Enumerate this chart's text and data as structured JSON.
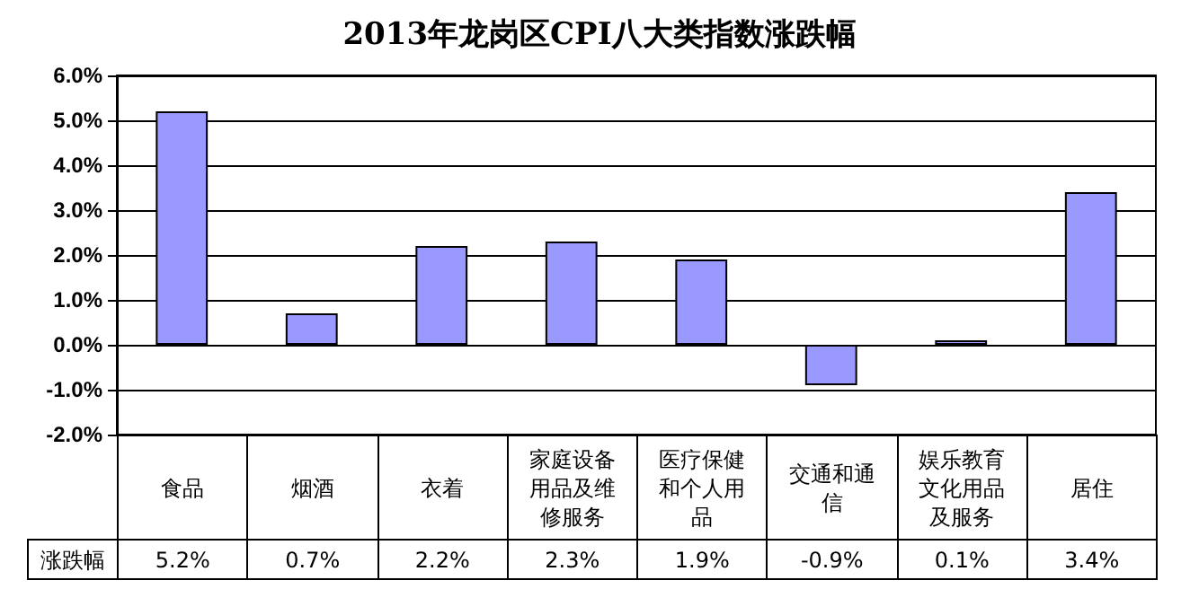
{
  "chart_data": {
    "type": "bar",
    "title": "2013年龙岗区CPI八大类指数涨跌幅",
    "categories": [
      "食品",
      "烟酒",
      "衣着",
      "家庭设备用品及维修服务",
      "医疗保健和个人用品",
      "交通和通信",
      "娱乐教育文化用品及服务",
      "居住"
    ],
    "series": [
      {
        "name": "涨跌幅",
        "color": "#9999ff",
        "values": [
          5.2,
          0.7,
          2.2,
          2.3,
          1.9,
          -0.9,
          0.1,
          3.4
        ],
        "value_labels": [
          "5.2%",
          "0.7%",
          "2.2%",
          "2.3%",
          "1.9%",
          "-0.9%",
          "0.1%",
          "3.4%"
        ]
      }
    ],
    "ylim": [
      -2,
      6
    ],
    "yticks": [
      {
        "value": -2,
        "label": "-2.0%"
      },
      {
        "value": -1,
        "label": "-1.0%"
      },
      {
        "value": 0,
        "label": "0.0%"
      },
      {
        "value": 1,
        "label": "1.0%"
      },
      {
        "value": 2,
        "label": "2.0%"
      },
      {
        "value": 3,
        "label": "3.0%"
      },
      {
        "value": 4,
        "label": "4.0%"
      },
      {
        "value": 5,
        "label": "5.0%"
      },
      {
        "value": 6,
        "label": "6.0%"
      }
    ],
    "grid": "y",
    "legend": false
  }
}
